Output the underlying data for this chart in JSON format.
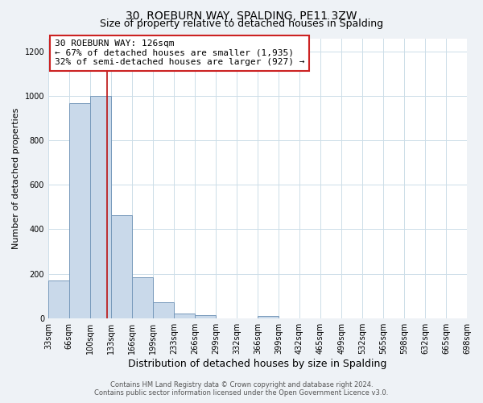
{
  "title": "30, ROEBURN WAY, SPALDING, PE11 3ZW",
  "subtitle": "Size of property relative to detached houses in Spalding",
  "xlabel": "Distribution of detached houses by size in Spalding",
  "ylabel": "Number of detached properties",
  "bar_lefts": [
    33,
    66,
    100,
    133,
    166,
    199,
    233,
    266,
    299,
    332,
    366,
    399,
    432,
    465,
    499,
    532,
    565,
    598,
    632,
    665
  ],
  "bar_rights": [
    66,
    100,
    133,
    166,
    199,
    233,
    266,
    299,
    332,
    366,
    399,
    432,
    465,
    499,
    532,
    565,
    598,
    632,
    665,
    698
  ],
  "bar_heights": [
    170,
    968,
    1000,
    462,
    185,
    72,
    22,
    15,
    0,
    0,
    10,
    0,
    0,
    0,
    0,
    0,
    0,
    0,
    0,
    0
  ],
  "bar_color": "#c9d9ea",
  "bar_edge_color": "#7799bb",
  "vline_x": 126,
  "vline_color": "#bb1111",
  "ann_line1": "30 ROEBURN WAY: 126sqm",
  "ann_line2": "← 67% of detached houses are smaller (1,935)",
  "ann_line3": "32% of semi-detached houses are larger (927) →",
  "ylim": [
    0,
    1260
  ],
  "yticks": [
    0,
    200,
    400,
    600,
    800,
    1000,
    1200
  ],
  "xtick_labels": [
    "33sqm",
    "66sqm",
    "100sqm",
    "133sqm",
    "166sqm",
    "199sqm",
    "233sqm",
    "266sqm",
    "299sqm",
    "332sqm",
    "366sqm",
    "399sqm",
    "432sqm",
    "465sqm",
    "499sqm",
    "532sqm",
    "565sqm",
    "598sqm",
    "632sqm",
    "665sqm",
    "698sqm"
  ],
  "xtick_positions": [
    33,
    66,
    100,
    133,
    166,
    199,
    233,
    266,
    299,
    332,
    366,
    399,
    432,
    465,
    499,
    532,
    565,
    598,
    632,
    665,
    698
  ],
  "footer_line1": "Contains HM Land Registry data © Crown copyright and database right 2024.",
  "footer_line2": "Contains public sector information licensed under the Open Government Licence v3.0.",
  "bg_color": "#eef2f6",
  "plot_bg_color": "#ffffff",
  "grid_color": "#ccdde8",
  "title_fontsize": 10,
  "subtitle_fontsize": 9,
  "xlabel_fontsize": 9,
  "ylabel_fontsize": 8,
  "tick_fontsize": 7,
  "ann_fontsize": 8,
  "footer_fontsize": 6
}
